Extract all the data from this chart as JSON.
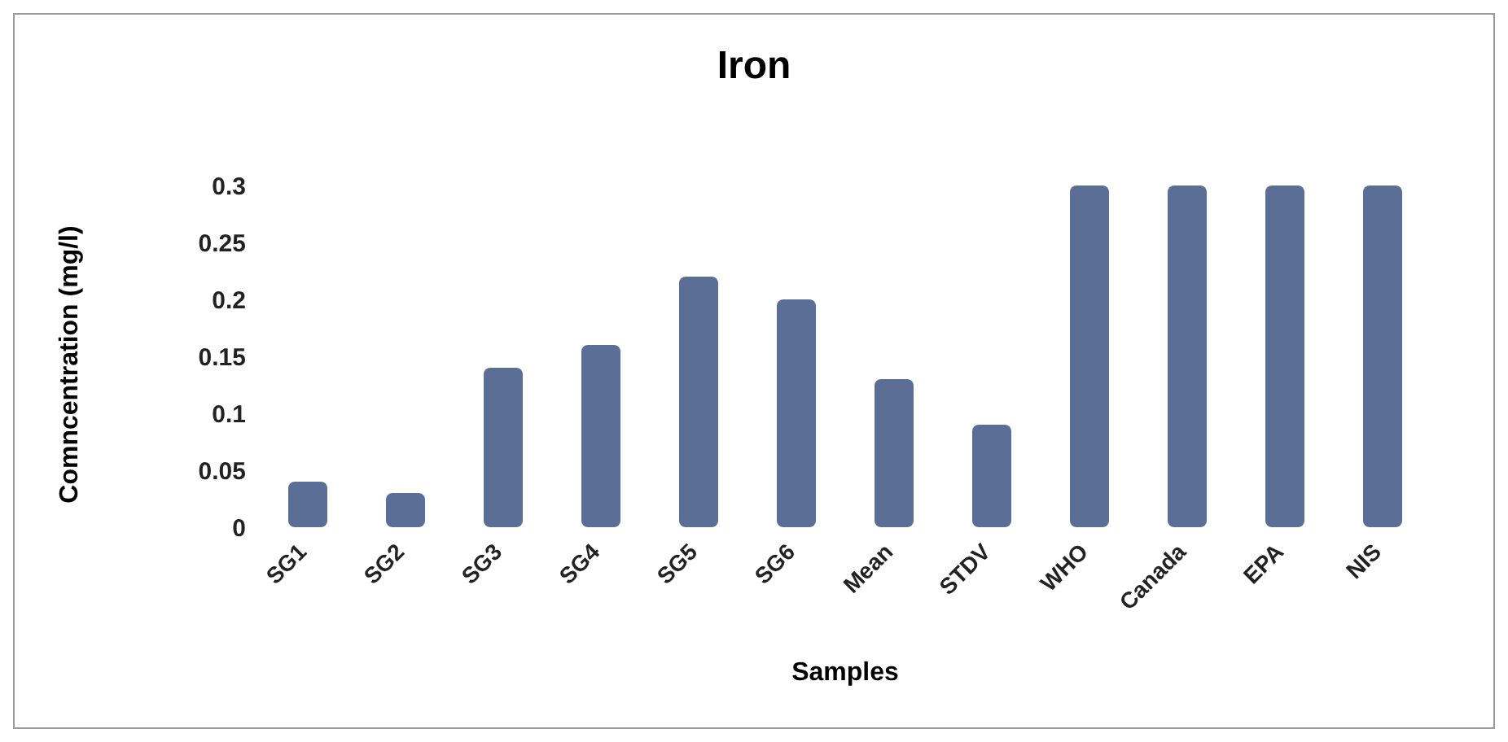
{
  "chart_data": {
    "type": "bar",
    "title": "Iron",
    "xlabel": "Samples",
    "ylabel": "Comncentration (mg/l)",
    "categories": [
      "SG1",
      "SG2",
      "SG3",
      "SG4",
      "SG5",
      "SG6",
      "Mean",
      "STDV",
      "WHO",
      "Canada",
      "EPA",
      "NIS"
    ],
    "values": [
      0.04,
      0.03,
      0.14,
      0.16,
      0.22,
      0.2,
      0.13,
      0.09,
      0.3,
      0.3,
      0.3,
      0.3
    ],
    "color": "#5b6f96",
    "ylim": [
      0,
      0.3
    ],
    "yticks": [
      0,
      0.05,
      0.1,
      0.15,
      0.2,
      0.25,
      0.3
    ],
    "grid": false,
    "legend": false
  }
}
